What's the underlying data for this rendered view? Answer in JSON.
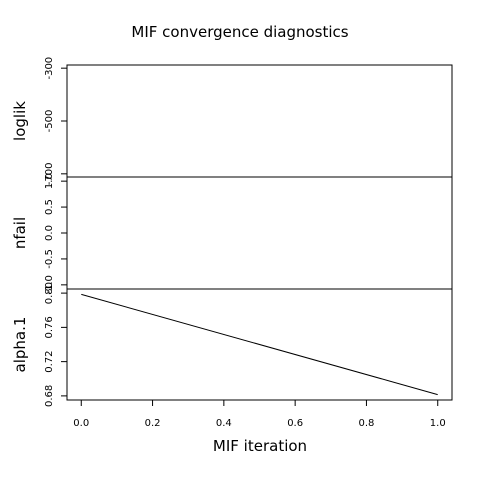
{
  "chart_data": {
    "type": "line",
    "title": "MIF convergence diagnostics",
    "xlabel": "MIF iteration",
    "x_ticks": [
      "0.0",
      "0.2",
      "0.4",
      "0.6",
      "0.8",
      "1.0"
    ],
    "x_tick_values": [
      0,
      0.2,
      0.4,
      0.6,
      0.8,
      1.0
    ],
    "xlim": [
      -0.04,
      1.04
    ],
    "panels": [
      {
        "ylabel": "loglik",
        "y_ticks": [
          "-300",
          "-500",
          "-700"
        ],
        "y_tick_values": [
          -300,
          -500,
          -700
        ],
        "ylim": [
          -712,
          -288
        ],
        "x": [],
        "y": []
      },
      {
        "ylabel": "nfail",
        "y_ticks": [
          "1.0",
          "0.5",
          "0.0",
          "-0.5",
          "-1.0"
        ],
        "y_tick_values": [
          1.0,
          0.5,
          0.0,
          -0.5,
          -1.0
        ],
        "ylim": [
          -1.08,
          1.08
        ],
        "x": [],
        "y": []
      },
      {
        "ylabel": "alpha.1",
        "y_ticks": [
          "0.80",
          "0.76",
          "0.72",
          "0.68"
        ],
        "y_tick_values": [
          0.8,
          0.76,
          0.72,
          0.68
        ],
        "ylim": [
          0.6752,
          0.8048
        ],
        "x": [
          0,
          1
        ],
        "y": [
          0.7985,
          0.6815
        ]
      }
    ]
  }
}
